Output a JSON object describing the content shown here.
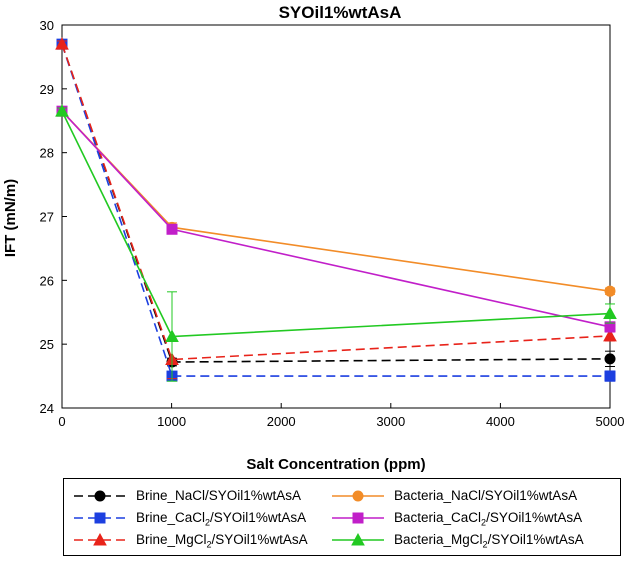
{
  "chart_data": {
    "type": "line",
    "title": "SYOil1%wtAsA",
    "xlabel": "Salt Concentration (ppm)",
    "ylabel": "IFT (mN/m)",
    "x_scale": "broken linear axis: 0, 1000, 5000 evenly spaced at the data points",
    "x": [
      0,
      1000,
      5000
    ],
    "xticks": [
      "0",
      "1000",
      "2000",
      "3000",
      "4000",
      "5000"
    ],
    "yticks": [
      "24",
      "25",
      "26",
      "27",
      "28",
      "29",
      "30"
    ],
    "ylim": [
      24,
      30
    ],
    "grid": false,
    "legend_position": "bottom",
    "series": [
      {
        "name": "Brine_NaCl/SYOil1%wtAsA",
        "label_pre": "Brine_NaCl/SYOil1%wtAsA",
        "label_sub": "",
        "label_post": "",
        "color": "#000000",
        "marker": "circle",
        "dash": true,
        "values": [
          29.7,
          24.72,
          24.77
        ],
        "errors": [
          0.05,
          0.06,
          0.12
        ]
      },
      {
        "name": "Brine_CaCl2/SYOil1%wtAsA",
        "label_pre": "Brine_CaCl",
        "label_sub": "2",
        "label_post": "/SYOil1%wtAsA",
        "color": "#1c3fe0",
        "marker": "square",
        "dash": true,
        "values": [
          29.7,
          24.5,
          24.5
        ],
        "errors": [
          0.05,
          0.05,
          0.08
        ]
      },
      {
        "name": "Brine_MgCl2/SYOil1%wtAsA",
        "label_pre": "Brine_MgCl",
        "label_sub": "2",
        "label_post": "/SYOil1%wtAsA",
        "color": "#e8231a",
        "marker": "triangle",
        "dash": true,
        "values": [
          29.7,
          24.76,
          25.13
        ],
        "errors": [
          0.05,
          0.3,
          0.08
        ]
      },
      {
        "name": "Bacteria_NaCl/SYOil1%wtAsA",
        "label_pre": "Bacteria_NaCl/SYOil1%wtAsA",
        "label_sub": "",
        "label_post": "",
        "color": "#f28c28",
        "marker": "circle",
        "dash": false,
        "values": [
          28.65,
          26.83,
          25.83
        ],
        "errors": [
          0.05,
          0.07,
          0.05
        ]
      },
      {
        "name": "Bacteria_CaCl2/SYOil1%wtAsA",
        "label_pre": "Bacteria_CaCl",
        "label_sub": "2",
        "label_post": "/SYOil1%wtAsA",
        "color": "#c11fc9",
        "marker": "square",
        "dash": false,
        "values": [
          28.65,
          26.8,
          25.27
        ],
        "errors": [
          0.05,
          0.07,
          0.08
        ]
      },
      {
        "name": "Bacteria_MgCl2/SYOil1%wtAsA",
        "label_pre": "Bacteria_MgCl",
        "label_sub": "2",
        "label_post": "/SYOil1%wtAsA",
        "color": "#22c922",
        "marker": "triangle",
        "dash": false,
        "values": [
          28.65,
          25.12,
          25.48
        ],
        "errors": [
          0.05,
          0.7,
          0.15
        ]
      }
    ]
  }
}
